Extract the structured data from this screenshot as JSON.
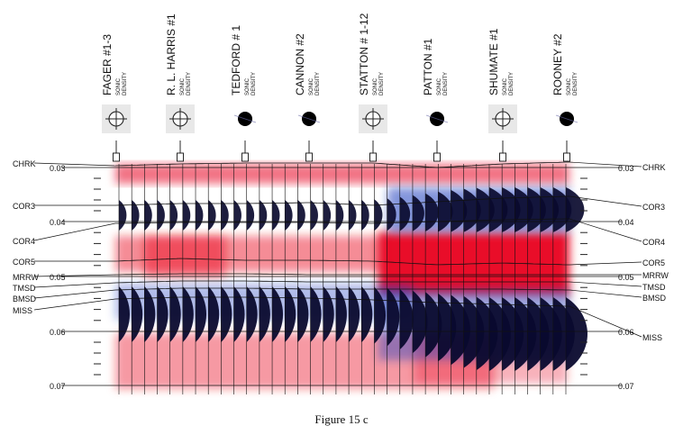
{
  "figure": {
    "caption": "Figure 15 c"
  },
  "wells": [
    {
      "name": "FAGER #1-3",
      "logs": "SONIC DENSITY",
      "symbol": "dry-hole-icon"
    },
    {
      "name": "R. L. HARRIS #1",
      "logs": "SONIC DENSITY",
      "symbol": "dry-hole-icon"
    },
    {
      "name": "TEDFORD # 1",
      "logs": "SONIC DENSITY",
      "symbol": "oil-well-icon"
    },
    {
      "name": "CANNON #2",
      "logs": "SONIC DENSITY",
      "symbol": "oil-well-icon"
    },
    {
      "name": "STATTON # 1-12",
      "logs": "SONIC DENSITY",
      "symbol": "dry-hole-icon"
    },
    {
      "name": "PATTON #1",
      "logs": "SONIC DENSITY",
      "symbol": "oil-well-icon"
    },
    {
      "name": "SHUMATE #1",
      "logs": "SONIC DENSITY",
      "symbol": "dry-hole-icon"
    },
    {
      "name": "ROONEY #2",
      "logs": "SONIC DENSITY",
      "symbol": "oil-well-icon"
    }
  ],
  "time_axis": {
    "ticks": [
      "0.03",
      "0.04",
      "0.05",
      "0.06",
      "0.07"
    ]
  },
  "horizons": {
    "left": [
      "CHRK",
      "COR3",
      "COR4",
      "COR5",
      "MRRW",
      "TMSD",
      "BMSD",
      "MISS"
    ],
    "right": [
      "CHRK",
      "COR3",
      "COR4",
      "COR5",
      "MRRW",
      "TMSD",
      "BMSD",
      "MISS"
    ]
  },
  "colors": {
    "positive_amplitude": "#e8001c",
    "negative_amplitude": "#0a0a2e",
    "trough_halo": "#1f3fbf"
  }
}
